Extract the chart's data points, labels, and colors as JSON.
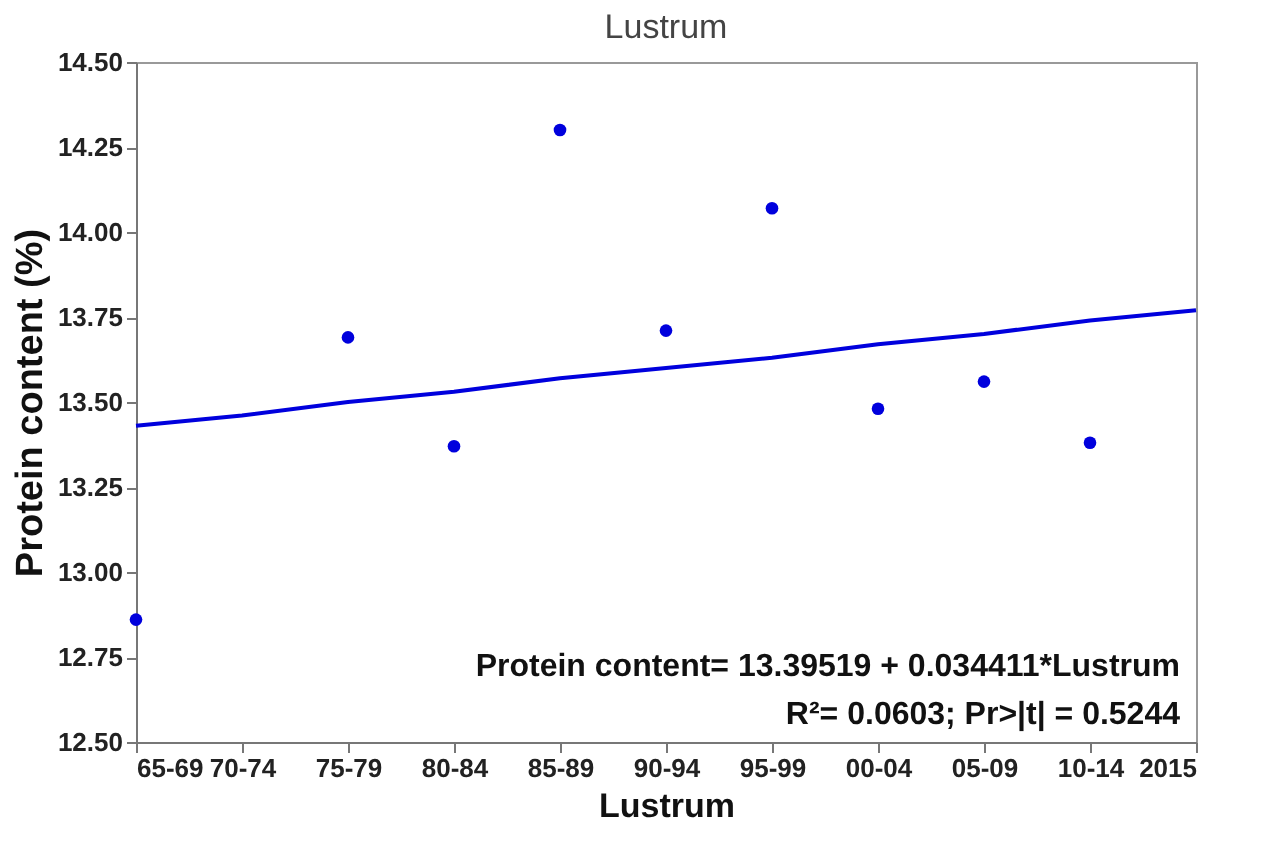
{
  "chart_data": {
    "type": "scatter",
    "title": "Lustrum",
    "xlabel": "Lustrum",
    "ylabel": "Protein content (%)",
    "categories": [
      "65-69",
      "70-74",
      "75-79",
      "80-84",
      "85-89",
      "90-94",
      "95-99",
      "00-04",
      "05-09",
      "10-14",
      "2015"
    ],
    "series": [
      {
        "color": "#0000dd",
        "values": [
          12.86,
          null,
          13.69,
          13.37,
          14.3,
          13.71,
          14.07,
          13.48,
          13.56,
          13.38,
          null
        ]
      },
      {
        "type": "line",
        "color": "#0000dd",
        "marker": "none",
        "values": [
          13.43,
          13.46,
          13.5,
          13.53,
          13.57,
          13.6,
          13.63,
          13.67,
          13.7,
          13.74,
          13.77
        ]
      }
    ],
    "ylim": [
      12.5,
      14.5
    ],
    "yticks": [
      {
        "value": 12.5,
        "label": "12.50"
      },
      {
        "value": 12.75,
        "label": "12.75"
      },
      {
        "value": 13,
        "label": "13.00"
      },
      {
        "value": 13.25,
        "label": "13.25"
      },
      {
        "value": 13.5,
        "label": "13.50"
      },
      {
        "value": 13.75,
        "label": "13.75"
      },
      {
        "value": 14,
        "label": "14.00"
      },
      {
        "value": 14.25,
        "label": "14.25"
      },
      {
        "value": 14.5,
        "label": "14.50"
      }
    ],
    "marker": "circle",
    "annotations": [
      "Protein content=  13.39519 + 0.034411*Lustrum",
      "R²= 0.0603;   Pr>|t| = 0.5244"
    ]
  }
}
